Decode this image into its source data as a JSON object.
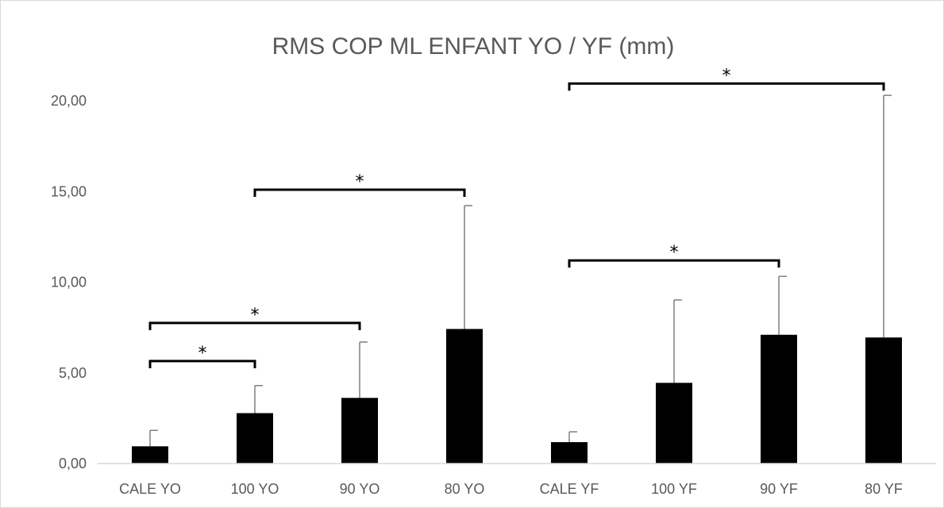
{
  "chart_data": {
    "type": "bar",
    "title": "RMS COP ML  ENFANT YO / YF (mm)",
    "xlabel": "",
    "ylabel": "",
    "ylim": [
      0,
      22
    ],
    "yticks": [
      0,
      5,
      10,
      15,
      20
    ],
    "ytick_labels": [
      "0,00",
      "5,00",
      "10,00",
      "15,00",
      "20,00"
    ],
    "grid": false,
    "legend": "none",
    "bar_color": "#000000",
    "error_bar_color": "#7f7f7f",
    "categories": [
      "CALE YO",
      "100 YO",
      "90 YO",
      "80 YO",
      "CALE YF",
      "100 YF",
      "90 YF",
      "80 YF"
    ],
    "values": [
      0.95,
      2.78,
      3.62,
      7.42,
      1.18,
      4.45,
      7.1,
      6.95
    ],
    "error_upper": [
      0.88,
      1.52,
      3.08,
      6.8,
      0.57,
      4.57,
      3.22,
      13.35
    ],
    "significance": [
      {
        "from": 0,
        "to": 1,
        "label": "*",
        "level": 5.65
      },
      {
        "from": 0,
        "to": 2,
        "label": "*",
        "level": 7.75
      },
      {
        "from": 1,
        "to": 3,
        "label": "*",
        "level": 15.1
      },
      {
        "from": 4,
        "to": 6,
        "label": "*",
        "level": 11.2
      },
      {
        "from": 4,
        "to": 7,
        "label": "*",
        "level": 20.95
      }
    ]
  }
}
